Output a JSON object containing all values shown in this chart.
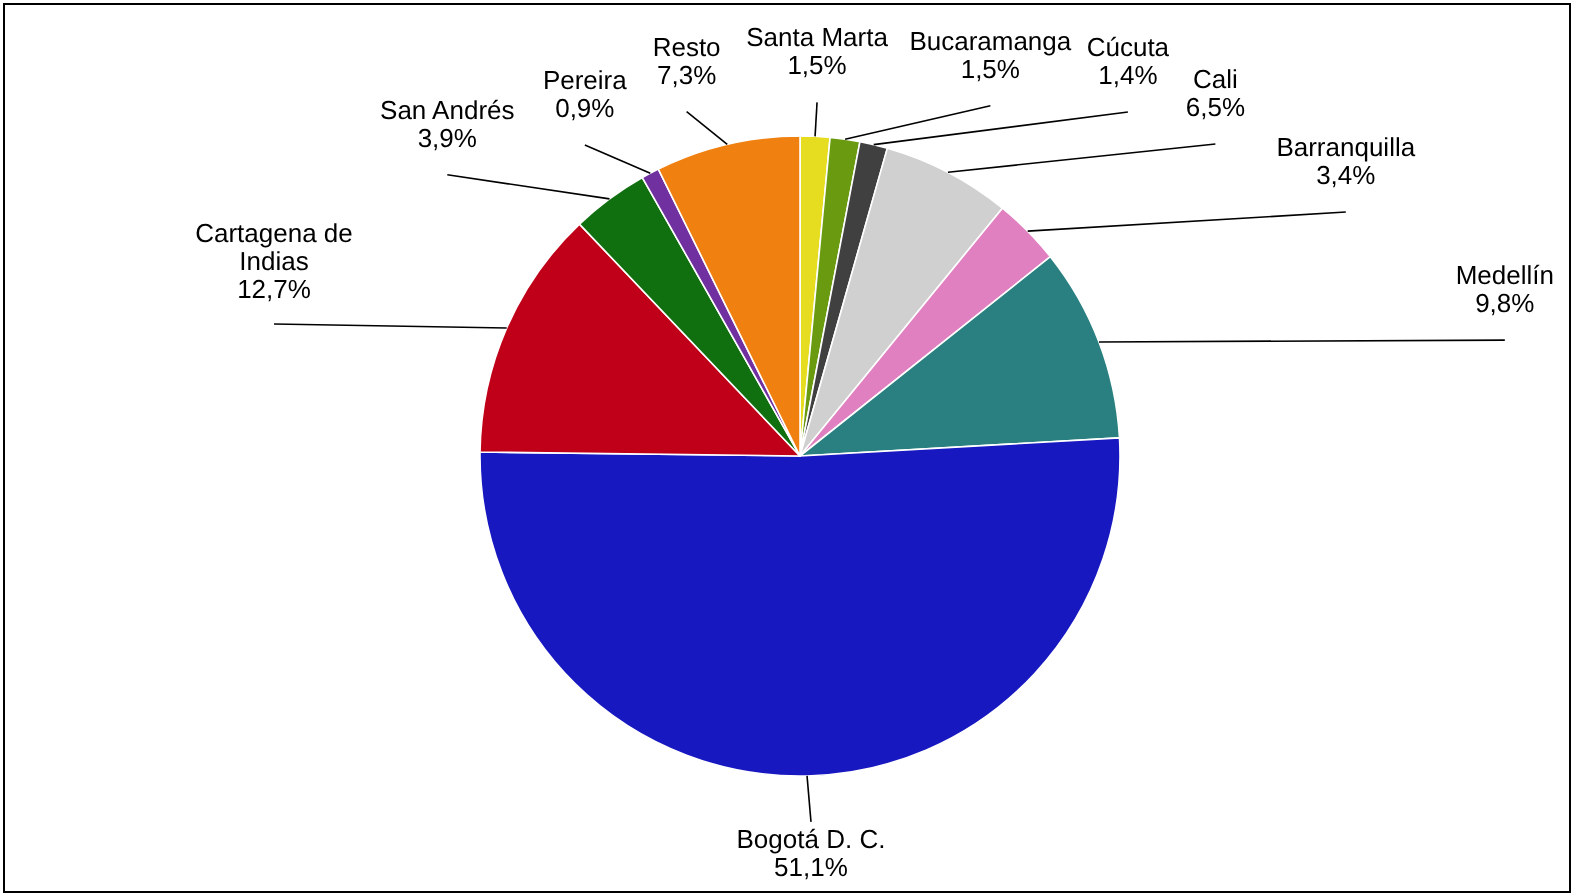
{
  "chart_data": {
    "type": "pie",
    "categories": [
      "Santa Marta",
      "Bucaramanga",
      "Cúcuta",
      "Cali",
      "Barranquilla",
      "Medellín",
      "Bogotá D. C.",
      "Cartagena de Indias",
      "San Andrés",
      "Pereira",
      "Resto"
    ],
    "values": [
      1.5,
      1.5,
      1.4,
      6.5,
      3.4,
      9.8,
      51.1,
      12.7,
      3.9,
      0.9,
      7.3
    ],
    "value_labels": [
      "1,5%",
      "1,5%",
      "1,4%",
      "6,5%",
      "3,4%",
      "9,8%",
      "51,1%",
      "12,7%",
      "3,9%",
      "0,9%",
      "7,3%"
    ],
    "colors": [
      "#e6dc20",
      "#6a9a10",
      "#404040",
      "#d0d0d0",
      "#e080c0",
      "#2a8080",
      "#1818c0",
      "#c00018",
      "#107010",
      "#7030a0",
      "#f08010"
    ]
  }
}
